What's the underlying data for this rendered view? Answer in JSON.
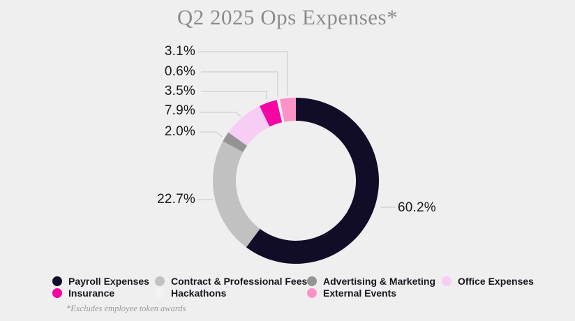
{
  "page": {
    "background": "#f0eff0"
  },
  "title": {
    "text": "Q2 2025 Ops Expenses*"
  },
  "footnote": {
    "text": "*Excludes employee token awards"
  },
  "chart_data": {
    "type": "pie",
    "variant": "donut",
    "title": "Q2 2025 Ops Expenses*",
    "unit": "%",
    "start_angle_deg": 0,
    "direction": "clockwise",
    "legend_position": "bottom",
    "slices": [
      {
        "label": "Payroll Expenses",
        "value": 60.2,
        "pct_label": "60.2%",
        "color": "#110d28"
      },
      {
        "label": "Contract & Professional Fees",
        "value": 22.7,
        "pct_label": "22.7%",
        "color": "#c2c1c2"
      },
      {
        "label": "Advertising & Marketing",
        "value": 2.0,
        "pct_label": "2.0%",
        "color": "#959495"
      },
      {
        "label": "Office Expenses",
        "value": 7.9,
        "pct_label": "7.9%",
        "color": "#f8cdf5"
      },
      {
        "label": "Insurance",
        "value": 3.5,
        "pct_label": "3.5%",
        "color": "#f406a3"
      },
      {
        "label": "Hackathons",
        "value": 0.6,
        "pct_label": "0.6%",
        "color": "#f4f2f3"
      },
      {
        "label": "External Events",
        "value": 3.1,
        "pct_label": "3.1%",
        "color": "#fd92c7"
      }
    ],
    "colors": {
      "leader_line": "#c7c6c7",
      "label_text": "#161616",
      "title_text": "#8d8b8c"
    }
  }
}
